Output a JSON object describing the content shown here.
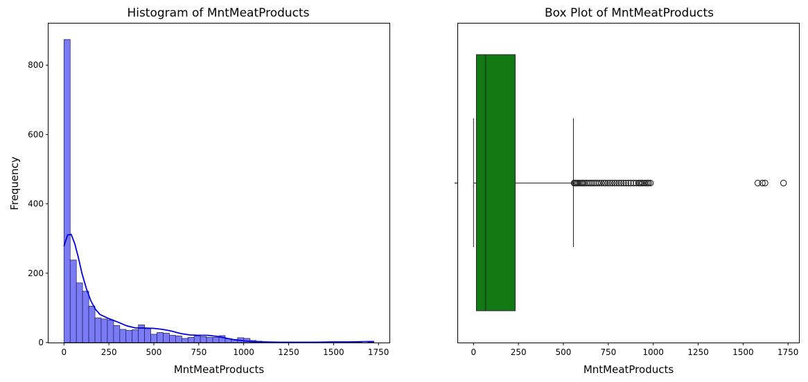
{
  "chart_data": [
    {
      "type": "bar",
      "subtype": "histogram",
      "title": "Histogram of MntMeatProducts",
      "xlabel": "MntMeatProducts",
      "ylabel": "Frequency",
      "xlim": [
        -86,
        1811
      ],
      "ylim": [
        0,
        920
      ],
      "xticks": [
        0,
        250,
        500,
        750,
        1000,
        1250,
        1500,
        1750
      ],
      "yticks": [
        0,
        200,
        400,
        600,
        800
      ],
      "bin_width": 34.5,
      "bin_start": 0,
      "counts": [
        874,
        238,
        172,
        148,
        105,
        71,
        68,
        65,
        49,
        38,
        35,
        37,
        51,
        40,
        24,
        29,
        27,
        21,
        19,
        12,
        15,
        19,
        17,
        15,
        15,
        20,
        11,
        9,
        14,
        12,
        6,
        4,
        2,
        1,
        1,
        0,
        0,
        0,
        0,
        0,
        0,
        0,
        0,
        0,
        0,
        0,
        1,
        1,
        0,
        1
      ],
      "bar_color": "#7b7bf5",
      "bar_edge_color": "#1a1a5a",
      "kde": {
        "x": [
          0,
          20,
          40,
          60,
          80,
          100,
          125,
          150,
          175,
          200,
          250,
          300,
          350,
          400,
          450,
          500,
          550,
          600,
          650,
          700,
          750,
          800,
          850,
          900,
          950,
          1000,
          1050,
          1100,
          1200,
          1300,
          1400,
          1500,
          1600,
          1700,
          1725
        ],
        "y": [
          278,
          310,
          312,
          285,
          245,
          200,
          155,
          120,
          96,
          81,
          69,
          59,
          48,
          42,
          42,
          41,
          38,
          33,
          26,
          22,
          21,
          21,
          18,
          13,
          8,
          5,
          3,
          2,
          1,
          1,
          1,
          2,
          2,
          3,
          3
        ],
        "color": "#0000e0"
      },
      "grid": false
    },
    {
      "type": "box",
      "title": "Box Plot of MntMeatProducts",
      "xlabel": "MntMeatProducts",
      "xlim": [
        -86,
        1811
      ],
      "xticks": [
        0,
        250,
        500,
        750,
        1000,
        1250,
        1500,
        1750
      ],
      "whisker_low": 0,
      "q1": 16,
      "median": 67,
      "q3": 232,
      "whisker_high": 556,
      "outliers": [
        560,
        565,
        570,
        576,
        582,
        590,
        598,
        605,
        612,
        620,
        630,
        640,
        650,
        660,
        670,
        680,
        690,
        700,
        712,
        725,
        735,
        748,
        760,
        772,
        785,
        797,
        810,
        822,
        835,
        848,
        862,
        875,
        890,
        905,
        918,
        925,
        932,
        940,
        950,
        960,
        968,
        975,
        984,
        1582,
        1607,
        1622,
        1725
      ],
      "box_color": "#127812",
      "grid": false
    }
  ]
}
